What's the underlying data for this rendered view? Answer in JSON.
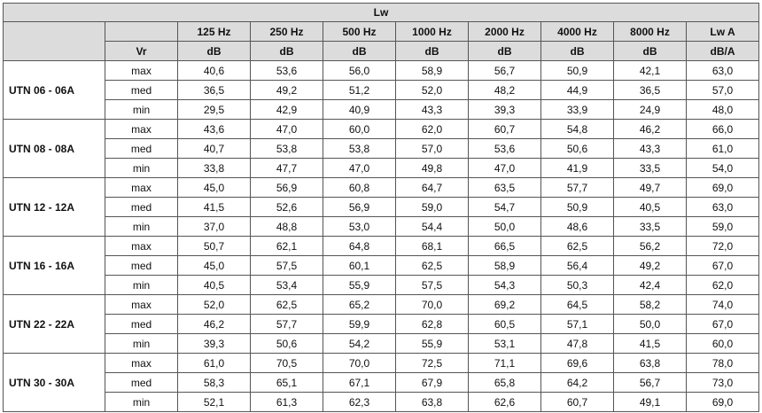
{
  "table": {
    "title": "Lw",
    "vr_label": "Vr",
    "freq_headers": [
      "125 Hz",
      "250 Hz",
      "500 Hz",
      "1000 Hz",
      "2000 Hz",
      "4000 Hz",
      "8000 Hz",
      "Lw A"
    ],
    "unit_headers": [
      "dB",
      "dB",
      "dB",
      "dB",
      "dB",
      "dB",
      "dB",
      "dB/A"
    ],
    "groups": [
      {
        "model": "UTN 06 - 06A",
        "rows": [
          {
            "speed": "max",
            "values": [
              "40,6",
              "53,6",
              "56,0",
              "58,9",
              "56,7",
              "50,9",
              "42,1",
              "63,0"
            ]
          },
          {
            "speed": "med",
            "values": [
              "36,5",
              "49,2",
              "51,2",
              "52,0",
              "48,2",
              "44,9",
              "36,5",
              "57,0"
            ]
          },
          {
            "speed": "min",
            "values": [
              "29,5",
              "42,9",
              "40,9",
              "43,3",
              "39,3",
              "33,9",
              "24,9",
              "48,0"
            ]
          }
        ]
      },
      {
        "model": "UTN 08 - 08A",
        "rows": [
          {
            "speed": "max",
            "values": [
              "43,6",
              "47,0",
              "60,0",
              "62,0",
              "60,7",
              "54,8",
              "46,2",
              "66,0"
            ]
          },
          {
            "speed": "med",
            "values": [
              "40,7",
              "53,8",
              "53,8",
              "57,0",
              "53,6",
              "50,6",
              "43,3",
              "61,0"
            ]
          },
          {
            "speed": "min",
            "values": [
              "33,8",
              "47,7",
              "47,0",
              "49,8",
              "47,0",
              "41,9",
              "33,5",
              "54,0"
            ]
          }
        ]
      },
      {
        "model": "UTN 12 - 12A",
        "rows": [
          {
            "speed": "max",
            "values": [
              "45,0",
              "56,9",
              "60,8",
              "64,7",
              "63,5",
              "57,7",
              "49,7",
              "69,0"
            ]
          },
          {
            "speed": "med",
            "values": [
              "41,5",
              "52,6",
              "56,9",
              "59,0",
              "54,7",
              "50,9",
              "40,5",
              "63,0"
            ]
          },
          {
            "speed": "min",
            "values": [
              "37,0",
              "48,8",
              "53,0",
              "54,4",
              "50,0",
              "48,6",
              "33,5",
              "59,0"
            ]
          }
        ]
      },
      {
        "model": "UTN 16 - 16A",
        "rows": [
          {
            "speed": "max",
            "values": [
              "50,7",
              "62,1",
              "64,8",
              "68,1",
              "66,5",
              "62,5",
              "56,2",
              "72,0"
            ]
          },
          {
            "speed": "med",
            "values": [
              "45,0",
              "57,5",
              "60,1",
              "62,5",
              "58,9",
              "56,4",
              "49,2",
              "67,0"
            ]
          },
          {
            "speed": "min",
            "values": [
              "40,5",
              "53,4",
              "55,9",
              "57,5",
              "54,3",
              "50,3",
              "42,4",
              "62,0"
            ]
          }
        ]
      },
      {
        "model": "UTN 22 - 22A",
        "rows": [
          {
            "speed": "max",
            "values": [
              "52,0",
              "62,5",
              "65,2",
              "70,0",
              "69,2",
              "64,5",
              "58,2",
              "74,0"
            ]
          },
          {
            "speed": "med",
            "values": [
              "46,2",
              "57,7",
              "59,9",
              "62,8",
              "60,5",
              "57,1",
              "50,0",
              "67,0"
            ]
          },
          {
            "speed": "min",
            "values": [
              "39,3",
              "50,6",
              "54,2",
              "55,9",
              "53,1",
              "47,8",
              "41,5",
              "60,0"
            ]
          }
        ]
      },
      {
        "model": "UTN 30 - 30A",
        "rows": [
          {
            "speed": "max",
            "values": [
              "61,0",
              "70,5",
              "70,0",
              "72,5",
              "71,1",
              "69,6",
              "63,8",
              "78,0"
            ]
          },
          {
            "speed": "med",
            "values": [
              "58,3",
              "65,1",
              "67,1",
              "67,9",
              "65,8",
              "64,2",
              "56,7",
              "73,0"
            ]
          },
          {
            "speed": "min",
            "values": [
              "52,1",
              "61,3",
              "62,3",
              "63,8",
              "62,6",
              "60,7",
              "49,1",
              "69,0"
            ]
          }
        ]
      }
    ]
  }
}
